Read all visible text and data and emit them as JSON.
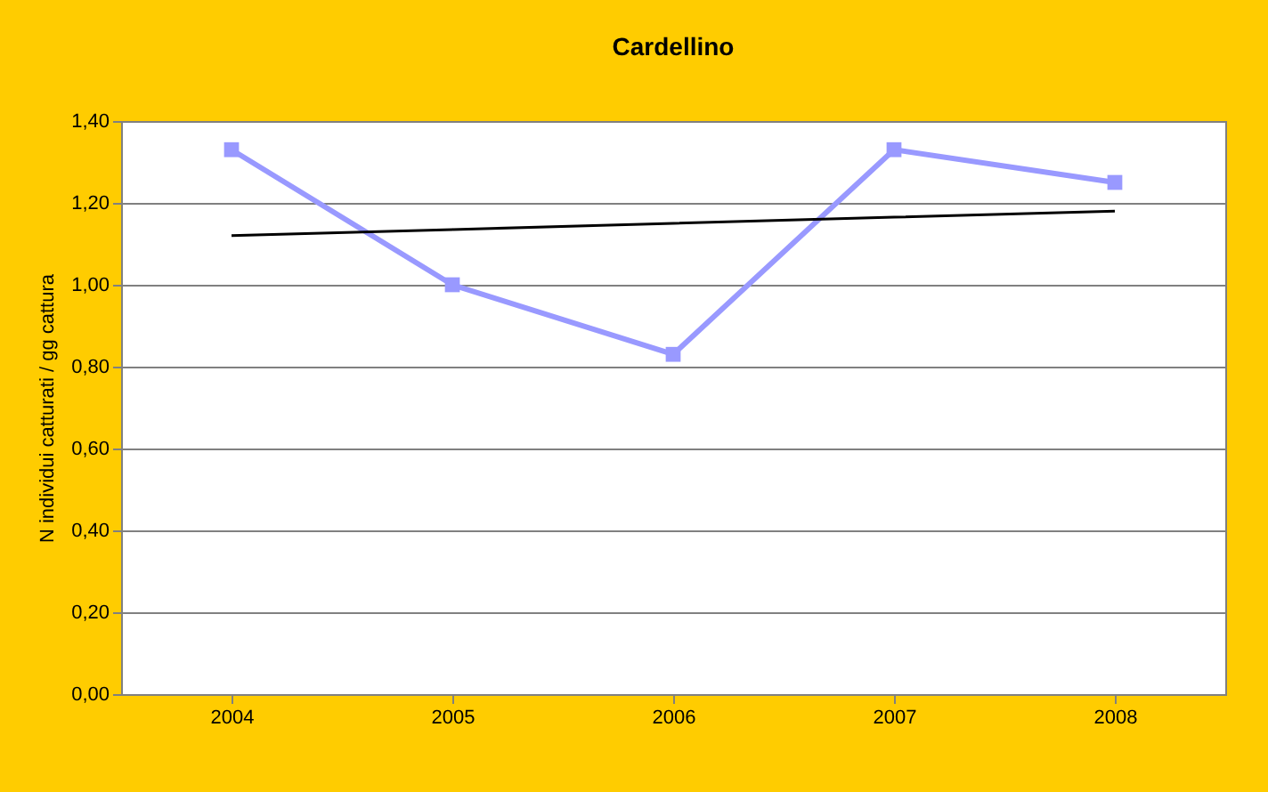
{
  "chart_data": {
    "type": "line",
    "title": "Cardellino",
    "ylabel": "N individui catturati / gg cattura",
    "categories": [
      "2004",
      "2005",
      "2006",
      "2007",
      "2008"
    ],
    "ylim": [
      0,
      1.4
    ],
    "yticks": [
      {
        "value": 0,
        "label": "0,00"
      },
      {
        "value": 0.2,
        "label": "0,20"
      },
      {
        "value": 0.4,
        "label": "0,40"
      },
      {
        "value": 0.6,
        "label": "0,60"
      },
      {
        "value": 0.8,
        "label": "0,80"
      },
      {
        "value": 1.0,
        "label": "1,00"
      },
      {
        "value": 1.2,
        "label": "1,20"
      },
      {
        "value": 1.4,
        "label": "1,40"
      }
    ],
    "grid": "y",
    "marker": "square",
    "line_style": "solid",
    "series": [
      {
        "color": "#9999ff",
        "values": [
          1.33,
          1.0,
          0.83,
          1.33,
          1.25
        ]
      },
      {
        "type": "line",
        "color": "#000000",
        "values": [
          1.12,
          1.135,
          1.15,
          1.165,
          1.18
        ],
        "marker": "none"
      }
    ]
  }
}
